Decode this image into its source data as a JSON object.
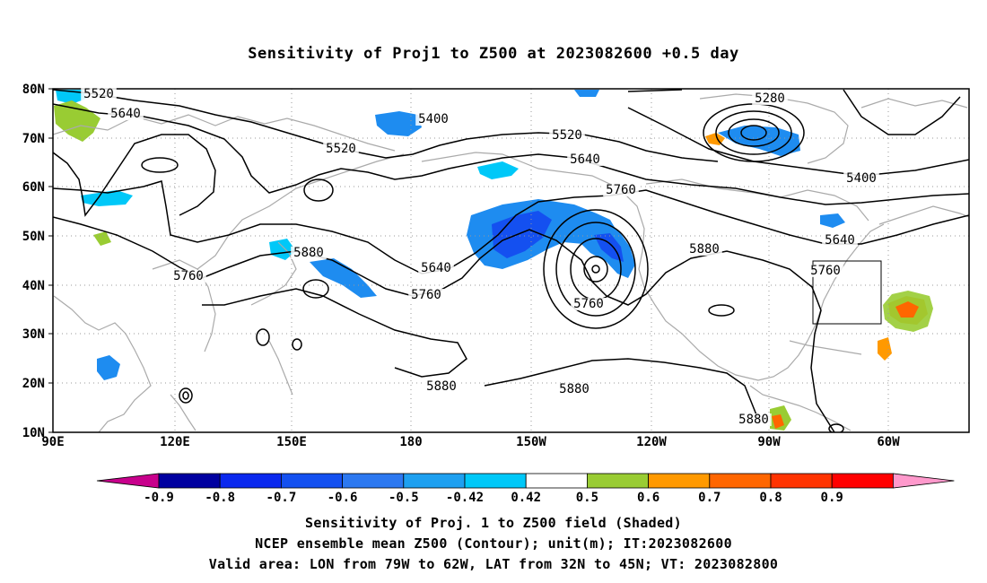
{
  "title": "Sensitivity of Proj1 to Z500 at 2023082600 +0.5 day",
  "captions": {
    "line1": "Sensitivity of Proj. 1 to Z500 field (Shaded)",
    "line2": "NCEP ensemble mean Z500 (Contour); unit(m); IT:2023082600",
    "line3": "Valid area: LON from 79W to 62W, LAT from 32N to 45N; VT: 2023082800"
  },
  "map": {
    "lat_ticks": [
      "80N",
      "70N",
      "60N",
      "50N",
      "40N",
      "30N",
      "20N",
      "10N"
    ],
    "lon_ticks": [
      "90E",
      "120E",
      "150E",
      "180",
      "150W",
      "120W",
      "90W",
      "60W"
    ],
    "valid_area": {
      "lon_from": "79W",
      "lon_to": "62W",
      "lat_from": "32N",
      "lat_to": "45N"
    }
  },
  "contour_labels": [
    {
      "text": "5520"
    },
    {
      "text": "5640"
    },
    {
      "text": "5400"
    },
    {
      "text": "5520"
    },
    {
      "text": "5520"
    },
    {
      "text": "5640"
    },
    {
      "text": "5760"
    },
    {
      "text": "5280"
    },
    {
      "text": "5400"
    },
    {
      "text": "5640"
    },
    {
      "text": "5760"
    },
    {
      "text": "5880"
    },
    {
      "text": "5760"
    },
    {
      "text": "5880"
    },
    {
      "text": "5640"
    },
    {
      "text": "5760"
    },
    {
      "text": "5760"
    },
    {
      "text": "5880"
    },
    {
      "text": "5880"
    },
    {
      "text": "5880"
    }
  ],
  "colorbar": {
    "labels": [
      "-0.9",
      "-0.8",
      "-0.7",
      "-0.6",
      "-0.5",
      "-0.42",
      "0.42",
      "0.5",
      "0.6",
      "0.7",
      "0.8",
      "0.9"
    ],
    "colors": [
      "#0000a0",
      "#0a28ee",
      "#1450f0",
      "#2c78f0",
      "#1ea0f0",
      "#00c8f8",
      "#ffffff",
      "#99cc33",
      "#ff9900",
      "#ff6600",
      "#ff3300",
      "#ff0000"
    ],
    "low_end_color": "#c8008c",
    "high_end_color": "#ff99cc"
  }
}
